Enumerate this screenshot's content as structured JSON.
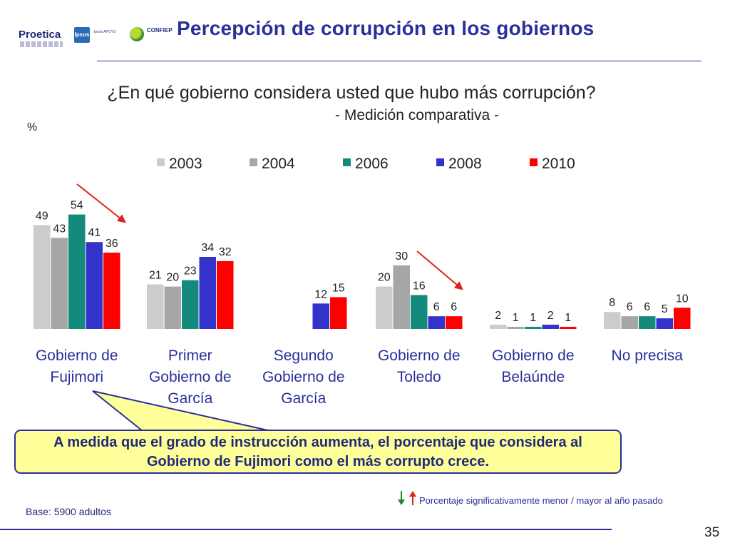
{
  "header": {
    "title": "Percepción de corrupción en los gobiernos",
    "logos": {
      "proetica": "Proetica",
      "ipsos": "Ipsos",
      "apoyo": "Ipsos APOYO",
      "confiep": "CONFIEP"
    }
  },
  "question": {
    "text": "¿En qué gobierno considera usted que hubo más corrupción?",
    "subtitle": "- Medición comparativa -"
  },
  "unit": "%",
  "chart_data": {
    "type": "bar",
    "title": "¿En qué gobierno considera usted que hubo más corrupción?",
    "ylabel": "%",
    "ylim": [
      0,
      60
    ],
    "legend_position": "top",
    "grid": false,
    "categories": [
      [
        "Gobierno de",
        "Fujimori"
      ],
      [
        "Primer",
        "Gobierno de",
        "García"
      ],
      [
        "Segundo",
        "Gobierno de",
        "García"
      ],
      [
        "Gobierno de",
        "Toledo"
      ],
      [
        "Gobierno de",
        "Belaúnde"
      ],
      [
        "No precisa"
      ]
    ],
    "series": [
      {
        "name": "2003",
        "color": "#cccccc",
        "values": [
          49,
          21,
          null,
          20,
          2,
          8
        ]
      },
      {
        "name": "2004",
        "color": "#a6a6a6",
        "values": [
          43,
          20,
          null,
          30,
          1,
          6
        ]
      },
      {
        "name": "2006",
        "color": "#138a7c",
        "values": [
          54,
          23,
          null,
          16,
          1,
          6
        ]
      },
      {
        "name": "2008",
        "color": "#3333cc",
        "values": [
          41,
          34,
          12,
          6,
          2,
          5
        ]
      },
      {
        "name": "2010",
        "color": "#ff0000",
        "values": [
          36,
          32,
          15,
          6,
          1,
          10
        ]
      }
    ],
    "annotations": [
      {
        "type": "trend-arrow",
        "category_index": 0,
        "direction": "down",
        "color": "#e0231c"
      },
      {
        "type": "trend-arrow",
        "category_index": 3,
        "direction": "down",
        "color": "#e0231c"
      }
    ]
  },
  "callout": {
    "lines": [
      "A medida que el grado de instrucción aumenta, el porcentaje que considera al",
      "Gobierno de Fujimori como el más corrupto crece."
    ]
  },
  "footer": {
    "legend_note": "Porcentaje significativamente menor / mayor al año pasado",
    "base": "Base: 5900 adultos",
    "page_number": "35"
  },
  "colors": {
    "accent": "#2a2f9a",
    "callout_fill": "#ffff99",
    "arrow_down": "#1a8a2a",
    "arrow_up": "#e0231c"
  }
}
